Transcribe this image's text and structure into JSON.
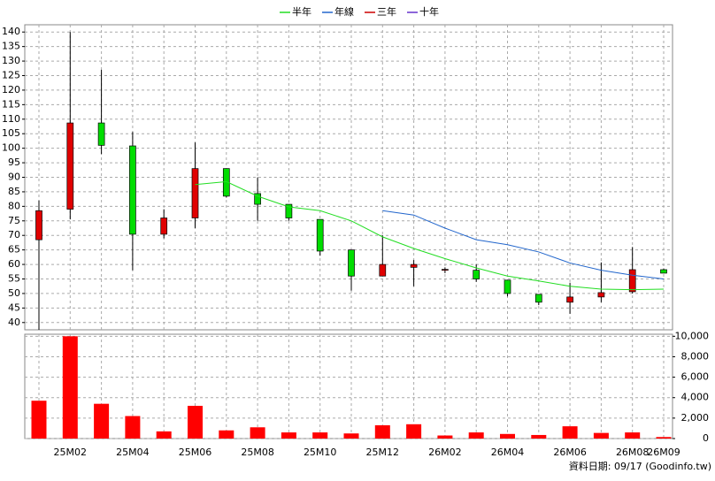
{
  "chart_data": [
    {
      "type": "candlestick",
      "open": [
        68.5,
        79,
        108.7,
        100.8,
        70.4,
        76,
        93,
        84.4,
        80.7,
        75.5,
        65,
        56,
        59,
        58,
        58,
        54.6,
        49.7,
        47,
        48.8,
        50.6,
        58.2
      ],
      "high": [
        82,
        140,
        127,
        105.6,
        79,
        102,
        93,
        90,
        80.7,
        75.5,
        65,
        70,
        61.5,
        59,
        60,
        54.6,
        49.7,
        53.7,
        60.7,
        66,
        58.6
      ],
      "low": [
        37.5,
        75.5,
        98,
        58,
        69,
        72.5,
        83,
        75,
        75,
        63,
        51,
        56,
        52.5,
        57,
        54,
        49,
        46,
        43,
        47,
        50,
        57
      ],
      "close": [
        78.5,
        108.7,
        101,
        70.4,
        76,
        93,
        83.5,
        80.7,
        76,
        64.6,
        56,
        60,
        60,
        58.3,
        55,
        50,
        47,
        48.8,
        50.3,
        58.2,
        57
      ],
      "up_color": "#e00000",
      "down_color": "#00dd00",
      "series": [
        {
          "name": "半年",
          "color": "#22dd22",
          "values": [
            null,
            null,
            null,
            null,
            null,
            87.5,
            88.5,
            83.5,
            79.8,
            78.5,
            75,
            69.5,
            65.5,
            62,
            58.8,
            56,
            54.3,
            52.5,
            51.5,
            51.3,
            51.5
          ]
        },
        {
          "name": "年線",
          "color": "#2266cc",
          "values": [
            null,
            null,
            null,
            null,
            null,
            null,
            null,
            null,
            null,
            null,
            null,
            78.5,
            77,
            72.5,
            68.5,
            66.8,
            64.3,
            60.5,
            58,
            56.3,
            55
          ]
        },
        {
          "name": "三年",
          "color": "#cc0000",
          "values": [
            null,
            null,
            null,
            null,
            null,
            null,
            null,
            null,
            null,
            null,
            null,
            null,
            null,
            null,
            null,
            null,
            null,
            null,
            null,
            null,
            null
          ]
        },
        {
          "name": "十年",
          "color": "#6633cc",
          "values": [
            null,
            null,
            null,
            null,
            null,
            null,
            null,
            null,
            null,
            null,
            null,
            null,
            null,
            null,
            null,
            null,
            null,
            null,
            null,
            null,
            null
          ]
        }
      ],
      "ylim": [
        37.5,
        142.5
      ],
      "yticks": [
        40,
        45,
        50,
        55,
        60,
        65,
        70,
        75,
        80,
        85,
        90,
        95,
        100,
        105,
        110,
        115,
        120,
        125,
        130,
        135,
        140
      ],
      "grid": true
    },
    {
      "type": "bar",
      "categories": [
        null,
        "25M02",
        null,
        "25M04",
        null,
        "25M06",
        null,
        "25M08",
        null,
        "25M10",
        null,
        "25M12",
        null,
        "26M02",
        null,
        "26M04",
        null,
        "26M06",
        null,
        "26M08",
        "26M09"
      ],
      "values": [
        3700,
        10000,
        3400,
        2200,
        700,
        3200,
        800,
        1100,
        600,
        600,
        500,
        1300,
        1400,
        300,
        600,
        450,
        350,
        1200,
        550,
        600,
        150
      ],
      "color": "#ff0000",
      "ylim": [
        0,
        10200
      ],
      "yticks": [
        0,
        {
          "value": 2000,
          "label": "2,000"
        },
        {
          "value": 4000,
          "label": "4,000"
        },
        {
          "value": 6000,
          "label": "6,000"
        },
        {
          "value": 8000,
          "label": "8,000"
        },
        {
          "value": 10000,
          "label": "10,000"
        }
      ],
      "grid": true,
      "footer": "資料日期: 09/17  (Goodinfo.tw)"
    }
  ]
}
